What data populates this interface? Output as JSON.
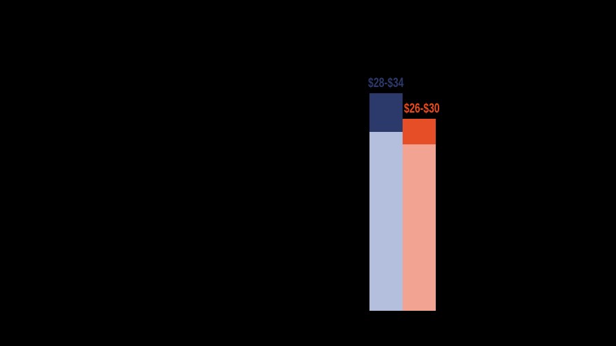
{
  "canvas": {
    "background": "#000000"
  },
  "chart_data": {
    "type": "bar",
    "subtype": "stacked-range",
    "title": "",
    "xlabel": "",
    "ylabel": "",
    "unit": "$",
    "baseline_value": 0,
    "ylim": [
      0,
      34
    ],
    "axes_visible": false,
    "gridlines": false,
    "legend": "none",
    "categories": [
      "",
      ""
    ],
    "bars": [
      {
        "name": "bar-1",
        "label": "$28-$34",
        "low": 28,
        "high": 34,
        "range_color": "#2b3a6a",
        "base_color": "#b4bedd",
        "label_color": "#2b3a6a"
      },
      {
        "name": "bar-2",
        "label": "$26-$30",
        "low": 26,
        "high": 30,
        "range_color": "#e54e26",
        "base_color": "#f3a392",
        "label_color": "#ea4a1f"
      }
    ]
  }
}
